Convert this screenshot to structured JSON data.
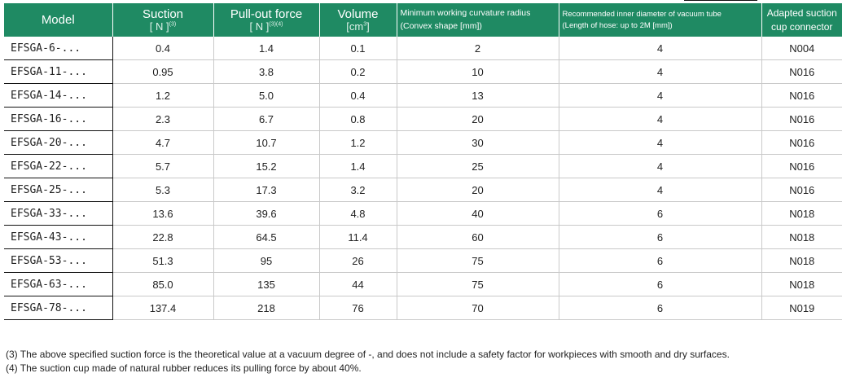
{
  "header": {
    "model": "Model",
    "suction": "Suction",
    "suction_unit": "[ N ]",
    "suction_ref": "(3)",
    "pullout": "Pull-out force",
    "pullout_unit": "[ N ]",
    "pullout_ref": "(3)(4)",
    "volume": "Volume",
    "volume_unit": "[cm",
    "volume_sup": "3",
    "volume_close": "]",
    "curvature_1": "Minimum working curvature radius",
    "curvature_2": "(Convex shape [mm])",
    "tube_1": "Recommended inner diameter of vacuum tube",
    "tube_2": "(Length of hose: up to 2M [mm])",
    "connector_1": "Adapted suction",
    "connector_2": "cup connector"
  },
  "rows": [
    {
      "model": "EFSGA-6-...",
      "suction": "0.4",
      "pullout": "1.4",
      "volume": "0.1",
      "curvature": "2",
      "tube": "4",
      "connector": "N004"
    },
    {
      "model": "EFSGA-11-...",
      "suction": "0.95",
      "pullout": "3.8",
      "volume": "0.2",
      "curvature": "10",
      "tube": "4",
      "connector": "N016"
    },
    {
      "model": "EFSGA-14-...",
      "suction": "1.2",
      "pullout": "5.0",
      "volume": "0.4",
      "curvature": "13",
      "tube": "4",
      "connector": "N016"
    },
    {
      "model": "EFSGA-16-...",
      "suction": "2.3",
      "pullout": "6.7",
      "volume": "0.8",
      "curvature": "20",
      "tube": "4",
      "connector": "N016"
    },
    {
      "model": "EFSGA-20-...",
      "suction": "4.7",
      "pullout": "10.7",
      "volume": "1.2",
      "curvature": "30",
      "tube": "4",
      "connector": "N016"
    },
    {
      "model": "EFSGA-22-...",
      "suction": "5.7",
      "pullout": "15.2",
      "volume": "1.4",
      "curvature": "25",
      "tube": "4",
      "connector": "N016"
    },
    {
      "model": "EFSGA-25-...",
      "suction": "5.3",
      "pullout": "17.3",
      "volume": "3.2",
      "curvature": "20",
      "tube": "4",
      "connector": "N016"
    },
    {
      "model": "EFSGA-33-...",
      "suction": "13.6",
      "pullout": "39.6",
      "volume": "4.8",
      "curvature": "40",
      "tube": "6",
      "connector": "N018"
    },
    {
      "model": "EFSGA-43-...",
      "suction": "22.8",
      "pullout": "64.5",
      "volume": "11.4",
      "curvature": "60",
      "tube": "6",
      "connector": "N018"
    },
    {
      "model": "EFSGA-53-...",
      "suction": "51.3",
      "pullout": "95",
      "volume": "26",
      "curvature": "75",
      "tube": "6",
      "connector": "N018"
    },
    {
      "model": "EFSGA-63-...",
      "suction": "85.0",
      "pullout": "135",
      "volume": "44",
      "curvature": "75",
      "tube": "6",
      "connector": "N018"
    },
    {
      "model": "EFSGA-78-...",
      "suction": "137.4",
      "pullout": "218",
      "volume": "76",
      "curvature": "70",
      "tube": "6",
      "connector": "N019"
    }
  ],
  "notes": [
    "(3) The above specified suction force is the theoretical value at a vacuum degree of -, and does not include a safety factor for workpieces with smooth and dry surfaces.",
    "(4) The suction cup made of natural rubber reduces its pulling force by about 40%."
  ],
  "colors": {
    "header_bg": "#1f8a63",
    "header_text": "#ffffff"
  }
}
